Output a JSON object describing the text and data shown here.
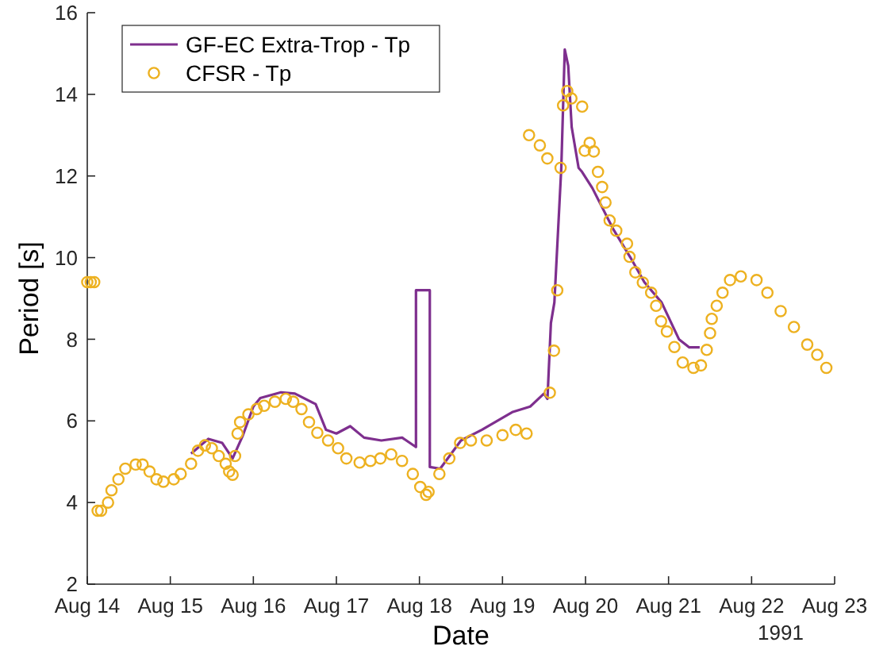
{
  "chart_data": {
    "type": "line",
    "xlabel": "Date",
    "ylabel": "Period [s]",
    "xlim": [
      "1991-08-14",
      "1991-08-23"
    ],
    "xticks": [
      {
        "value": "1991-08-14",
        "label": "Aug 14"
      },
      {
        "value": "1991-08-15",
        "label": "Aug 15"
      },
      {
        "value": "1991-08-16",
        "label": "Aug 16"
      },
      {
        "value": "1991-08-17",
        "label": "Aug 17"
      },
      {
        "value": "1991-08-18",
        "label": "Aug 18"
      },
      {
        "value": "1991-08-19",
        "label": "Aug 19"
      },
      {
        "value": "1991-08-20",
        "label": "Aug 20"
      },
      {
        "value": "1991-08-21",
        "label": "Aug 21"
      },
      {
        "value": "1991-08-22",
        "label": "Aug 22"
      },
      {
        "value": "1991-08-23",
        "label": "Aug 23"
      }
    ],
    "ylim": [
      2,
      16
    ],
    "yticks": [
      2,
      4,
      6,
      8,
      10,
      12,
      14,
      16
    ],
    "grid": false,
    "legend": "top left",
    "annotations": [
      "1991"
    ],
    "series": [
      {
        "name": "GF-EC Extra-Trop - Tp",
        "color": "#7e2f8e",
        "marker": "none",
        "line_style": "solid",
        "x": [
          "1991-08-15T06:00",
          "1991-08-15T11:00",
          "1991-08-15T15:00",
          "1991-08-15T18:00",
          "1991-08-15T21:00",
          "1991-08-16T00:00",
          "1991-08-16T02:00",
          "1991-08-16T08:00",
          "1991-08-16T12:00",
          "1991-08-16T18:00",
          "1991-08-16T21:00",
          "1991-08-17T00:00",
          "1991-08-17T04:00",
          "1991-08-17T08:00",
          "1991-08-17T13:00",
          "1991-08-17T19:00",
          "1991-08-17T23:00",
          "1991-08-17T23:00",
          "1991-08-18T03:00",
          "1991-08-18T03:00",
          "1991-08-18T06:00",
          "1991-08-18T12:00",
          "1991-08-18T18:00",
          "1991-08-19T03:00",
          "1991-08-19T08:00",
          "1991-08-19T12:00",
          "1991-08-19T13:00",
          "1991-08-19T14:00",
          "1991-08-19T15:00",
          "1991-08-19T17:00",
          "1991-08-19T18:00",
          "1991-08-19T19:00",
          "1991-08-19T20:00",
          "1991-08-19T22:00",
          "1991-08-19T23:00",
          "1991-08-20T02:00",
          "1991-08-20T05:00",
          "1991-08-20T08:00",
          "1991-08-20T13:00",
          "1991-08-20T17:00",
          "1991-08-20T22:00",
          "1991-08-21T03:00",
          "1991-08-21T06:00",
          "1991-08-21T09:00"
        ],
        "values": [
          5.2,
          5.56,
          5.46,
          5.08,
          5.65,
          6.35,
          6.56,
          6.7,
          6.67,
          6.41,
          5.78,
          5.69,
          5.87,
          5.59,
          5.52,
          5.59,
          5.36,
          9.2,
          9.2,
          4.87,
          4.83,
          5.52,
          5.78,
          6.22,
          6.35,
          6.67,
          6.54,
          8.4,
          8.9,
          12.2,
          15.1,
          14.7,
          13.2,
          12.2,
          12.1,
          11.7,
          11.2,
          10.7,
          10.0,
          9.4,
          8.9,
          8.0,
          7.8,
          7.8
        ]
      },
      {
        "name": "CFSR - Tp",
        "type": "scatter",
        "color": "#edb120",
        "marker": "circle",
        "x": [
          "1991-08-14T00:00",
          "1991-08-14T01:00",
          "1991-08-14T02:00",
          "1991-08-14T03:00",
          "1991-08-14T04:00",
          "1991-08-14T06:00",
          "1991-08-14T07:00",
          "1991-08-14T09:00",
          "1991-08-14T11:00",
          "1991-08-14T14:00",
          "1991-08-14T16:00",
          "1991-08-14T18:00",
          "1991-08-14T20:00",
          "1991-08-14T22:00",
          "1991-08-15T01:00",
          "1991-08-15T03:00",
          "1991-08-15T06:00",
          "1991-08-15T08:00",
          "1991-08-15T10:00",
          "1991-08-15T12:00",
          "1991-08-15T14:00",
          "1991-08-15T16:00",
          "1991-08-15T17:00",
          "1991-08-15T18:00",
          "1991-08-15T18:43",
          "1991-08-15T19:26",
          "1991-08-15T20:10",
          "1991-08-15T22:34",
          "1991-08-16T00:58",
          "1991-08-16T03:07",
          "1991-08-16T06:14",
          "1991-08-16T09:22",
          "1991-08-16T11:31",
          "1991-08-16T13:55",
          "1991-08-16T16:05",
          "1991-08-16T18:29",
          "1991-08-16T21:36",
          "1991-08-17T00:29",
          "1991-08-17T02:53",
          "1991-08-17T06:43",
          "1991-08-17T09:50",
          "1991-08-17T12:43",
          "1991-08-17T15:50",
          "1991-08-17T18:58",
          "1991-08-17T22:05",
          "1991-08-18T00:14",
          "1991-08-18T01:55",
          "1991-08-18T02:38",
          "1991-08-18T05:46",
          "1991-08-18T08:38",
          "1991-08-18T11:46",
          "1991-08-18T14:53",
          "1991-08-18T19:26",
          "1991-08-19T00:00",
          "1991-08-19T03:50",
          "1991-08-19T06:58",
          "1991-08-19T07:41",
          "1991-08-19T10:48",
          "1991-08-19T12:58",
          "1991-08-19T13:41",
          "1991-08-19T14:53",
          "1991-08-19T15:50",
          "1991-08-19T16:48",
          "1991-08-19T17:31",
          "1991-08-19T18:43",
          "1991-08-19T19:55",
          "1991-08-19T23:02",
          "1991-08-19T23:46",
          "1991-08-20T01:12",
          "1991-08-20T02:24",
          "1991-08-20T03:36",
          "1991-08-20T04:48",
          "1991-08-20T05:46",
          "1991-08-20T06:58",
          "1991-08-20T08:53",
          "1991-08-20T12:00",
          "1991-08-20T12:43",
          "1991-08-20T14:24",
          "1991-08-20T16:34",
          "1991-08-20T18:58",
          "1991-08-20T20:24",
          "1991-08-20T21:50",
          "1991-08-20T23:31",
          "1991-08-21T01:41",
          "1991-08-21T04:05",
          "1991-08-21T07:12",
          "1991-08-21T09:22",
          "1991-08-21T11:02",
          "1991-08-21T12:00",
          "1991-08-21T12:29",
          "1991-08-21T13:55",
          "1991-08-21T15:36",
          "1991-08-21T17:46",
          "1991-08-21T20:53",
          "1991-08-22T01:26",
          "1991-08-22T04:34",
          "1991-08-22T08:24",
          "1991-08-22T12:14",
          "1991-08-22T16:05",
          "1991-08-22T18:58",
          "1991-08-22T21:36"
        ],
        "values": [
          9.4,
          9.4,
          9.4,
          3.8,
          3.8,
          4.0,
          4.3,
          4.57,
          4.83,
          4.93,
          4.93,
          4.76,
          4.57,
          4.51,
          4.57,
          4.7,
          4.95,
          5.27,
          5.4,
          5.33,
          5.14,
          4.95,
          4.76,
          4.68,
          5.14,
          5.69,
          5.97,
          6.16,
          6.29,
          6.37,
          6.47,
          6.54,
          6.47,
          6.29,
          5.97,
          5.71,
          5.52,
          5.33,
          5.08,
          4.98,
          5.02,
          5.08,
          5.18,
          5.02,
          4.7,
          4.38,
          4.19,
          4.26,
          4.7,
          5.08,
          5.46,
          5.52,
          5.52,
          5.65,
          5.78,
          5.69,
          13.0,
          12.75,
          12.43,
          6.69,
          7.72,
          9.2,
          12.2,
          13.73,
          14.08,
          13.9,
          13.7,
          12.62,
          12.81,
          12.6,
          12.1,
          11.73,
          11.35,
          10.91,
          10.66,
          10.34,
          10.02,
          9.64,
          9.39,
          9.14,
          8.82,
          8.44,
          8.19,
          7.81,
          7.43,
          7.3,
          7.36,
          7.74,
          8.15,
          8.5,
          8.82,
          9.14,
          9.45,
          9.54,
          9.45,
          9.14,
          8.69,
          8.3,
          7.87,
          7.62,
          7.3
        ]
      }
    ]
  }
}
